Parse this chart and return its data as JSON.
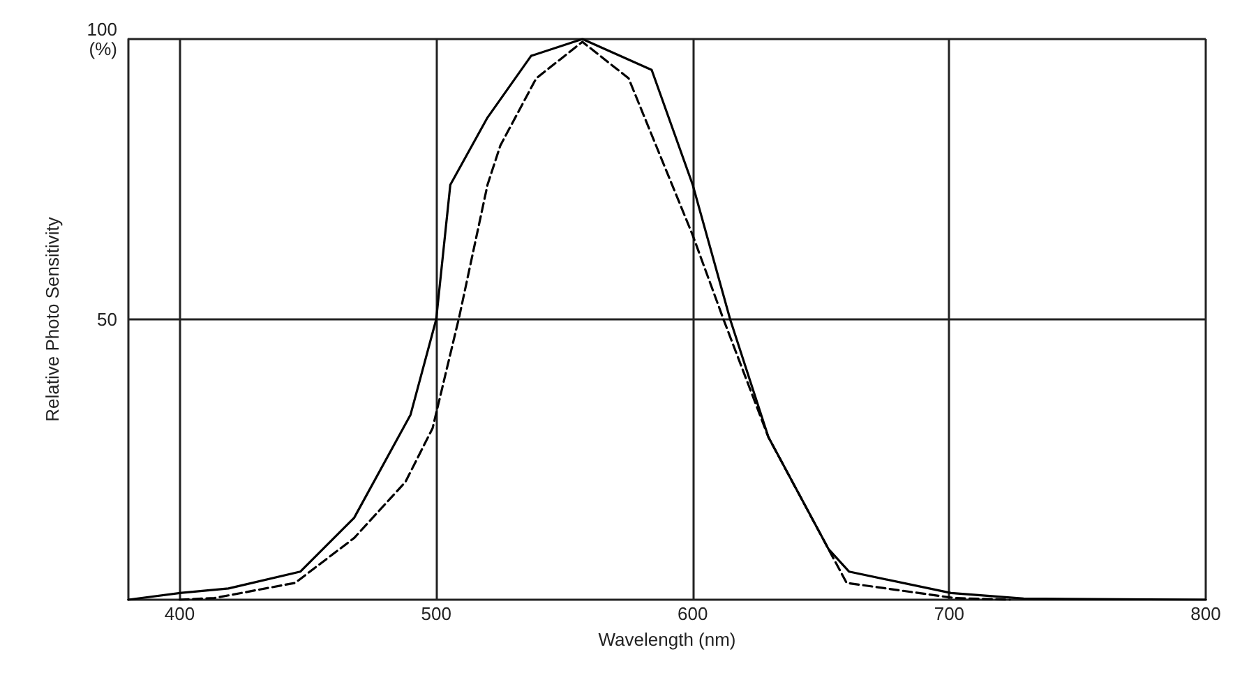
{
  "chart_data": {
    "type": "line",
    "xlabel": "Wavelength (nm)",
    "ylabel": "Relative Photo Sensitivity",
    "xlim": [
      380,
      800
    ],
    "xticks": [
      400,
      500,
      600,
      700,
      800
    ],
    "ylim": [
      0,
      100
    ],
    "yticks": [
      50,
      {
        "value": 100,
        "label": "100\n(%)"
      }
    ],
    "grid": true,
    "marker": "none",
    "series": [
      {
        "color": "#000000",
        "line_style": "solid",
        "x": [
          380,
          400,
          419,
          447,
          468,
          490,
          500,
          505.5,
          520,
          537,
          557,
          584,
          600,
          614.6,
          629.5,
          653,
          661,
          700.7,
          729,
          800
        ],
        "values": [
          0,
          1.2,
          2,
          5,
          14.6,
          33,
          50,
          74,
          86,
          97,
          100,
          94.5,
          74,
          50,
          29,
          9,
          5,
          1.2,
          0.2,
          0
        ]
      },
      {
        "color": "#000000",
        "line_style": "dashed",
        "x": [
          400,
          413.5,
          445,
          468,
          488,
          498.6,
          509,
          520,
          525,
          539,
          557,
          575,
          600,
          612,
          629.5,
          660,
          702,
          723.6
        ],
        "values": [
          0,
          0.3,
          3,
          11,
          21,
          30.6,
          50.5,
          74,
          81,
          93,
          99.5,
          93,
          65,
          50,
          29,
          3,
          0.3,
          0
        ]
      }
    ]
  }
}
